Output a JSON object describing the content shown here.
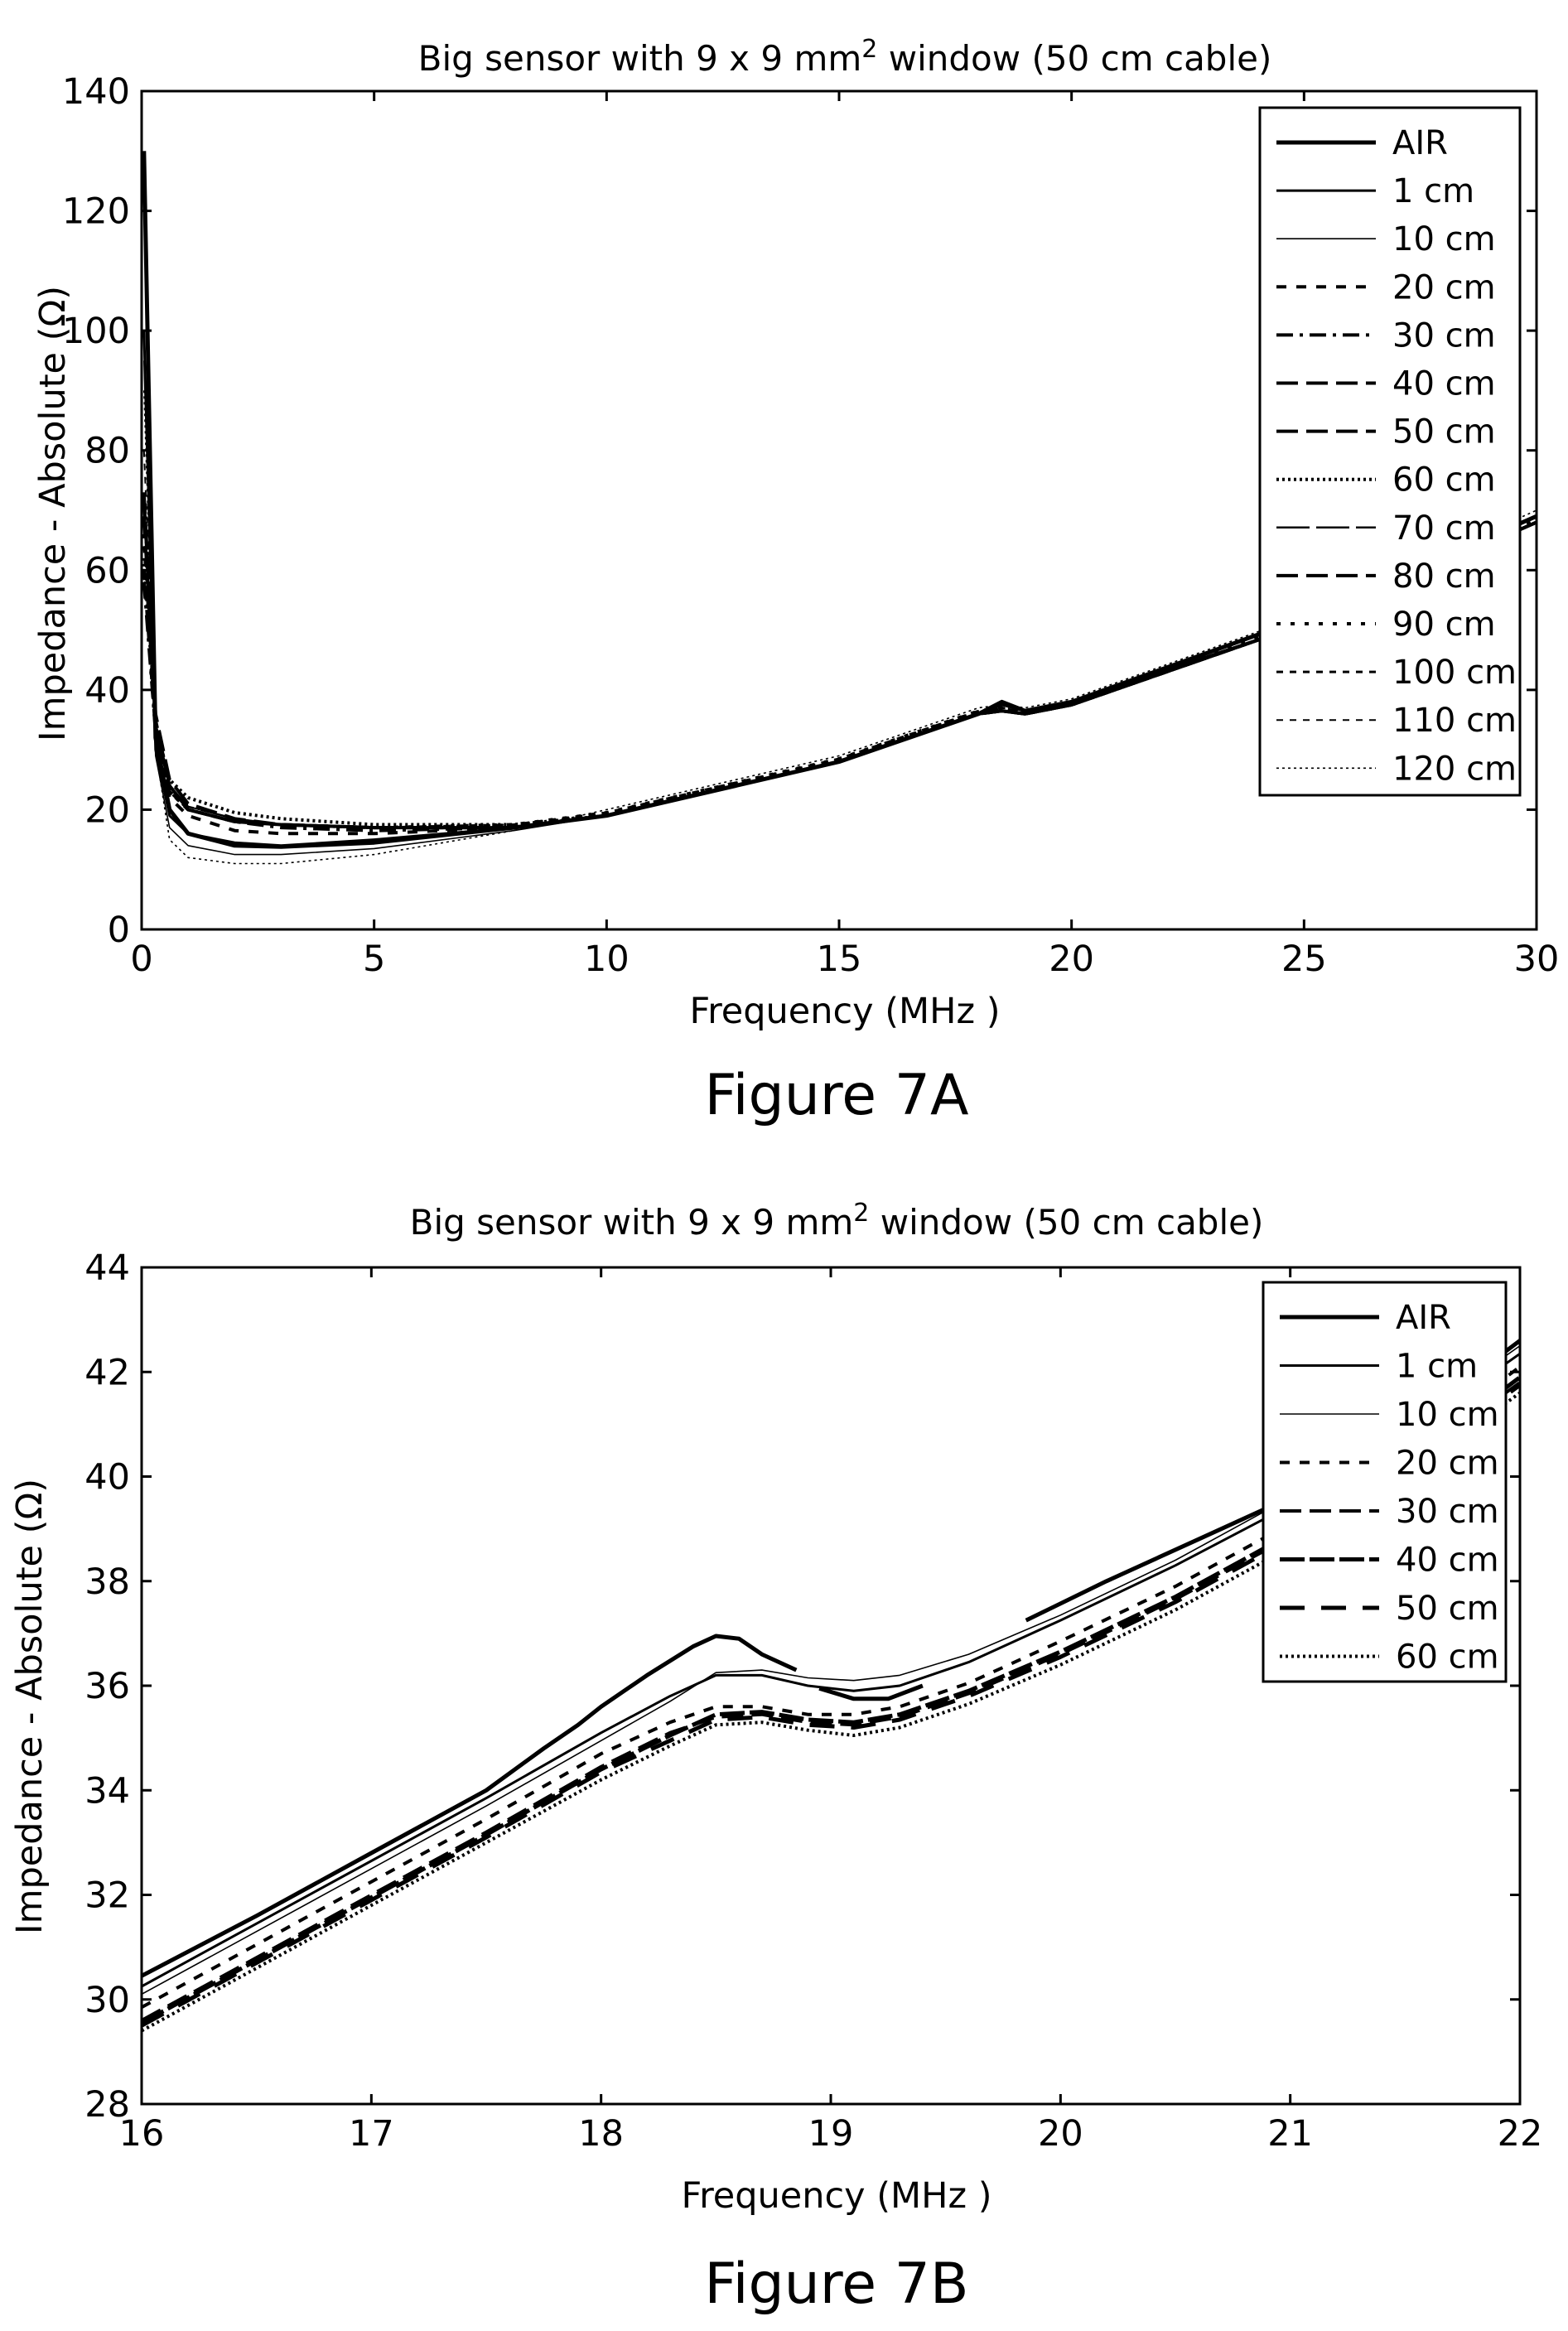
{
  "chart_data": [
    {
      "type": "line",
      "caption": "Figure 7A",
      "title": "Big sensor with 9 x 9 mm",
      "title_superscript": "2",
      "title_suffix": " window (50 cm cable)",
      "xlabel": "Frequency (MHz )",
      "ylabel": "Impedance - Absolute (Ω)",
      "xlim": [
        0,
        30
      ],
      "ylim": [
        0,
        140
      ],
      "x_ticks": [
        "0",
        "5",
        "10",
        "15",
        "20",
        "25",
        "30"
      ],
      "y_ticks": [
        "0",
        "20",
        "40",
        "60",
        "80",
        "100",
        "120",
        "140"
      ],
      "grid": false,
      "legend_position": "top-right",
      "series": [
        {
          "name": "AIR",
          "style": "thick-solid",
          "x": [
            0.05,
            0.3,
            0.6,
            1,
            2,
            3,
            5,
            8,
            10,
            15,
            18,
            18.5,
            19,
            20,
            25,
            30
          ],
          "y": [
            130,
            32,
            20,
            16,
            14,
            13.8,
            14.5,
            17,
            19,
            28,
            36,
            38,
            36.5,
            38,
            52,
            69
          ]
        },
        {
          "name": "1 cm",
          "style": "solid",
          "x": [
            0.05,
            0.3,
            0.6,
            1,
            2,
            3,
            5,
            8,
            10,
            15,
            18,
            18.5,
            19,
            20,
            25,
            30
          ],
          "y": [
            100,
            30,
            19,
            16,
            14.5,
            14,
            15,
            17,
            19,
            28,
            36,
            37.5,
            36.5,
            38,
            51,
            68
          ]
        },
        {
          "name": "10 cm",
          "style": "thin-solid",
          "x": [
            0.05,
            0.3,
            0.6,
            1,
            2,
            3,
            5,
            8,
            10,
            15,
            18,
            18.5,
            19,
            20,
            25,
            30
          ],
          "y": [
            95,
            29,
            17,
            14,
            12.5,
            12.5,
            13.5,
            16.5,
            19,
            28,
            36,
            37.5,
            36.5,
            38,
            51,
            68
          ]
        },
        {
          "name": "20 cm",
          "style": "dashed",
          "x": [
            0.05,
            0.3,
            0.6,
            1,
            2,
            3,
            5,
            8,
            10,
            15,
            18,
            18.5,
            19,
            20,
            25,
            30
          ],
          "y": [
            60,
            33,
            22,
            19,
            16.5,
            16,
            16,
            17,
            19,
            28,
            36,
            37,
            36,
            37.5,
            51,
            68
          ]
        },
        {
          "name": "30 cm",
          "style": "dash-dot",
          "x": [
            0.05,
            0.3,
            0.6,
            1,
            2,
            3,
            5,
            8,
            10,
            15,
            18,
            18.5,
            19,
            20,
            25,
            30
          ],
          "y": [
            58,
            33,
            23,
            20,
            18,
            17,
            16.5,
            17,
            19,
            28,
            36,
            36.5,
            36,
            37.5,
            51,
            68
          ]
        },
        {
          "name": "40 cm",
          "style": "long-dash",
          "x": [
            0.05,
            0.3,
            0.6,
            1,
            2,
            3,
            5,
            8,
            10,
            15,
            18,
            18.5,
            19,
            20,
            25,
            30
          ],
          "y": [
            73,
            36,
            25,
            21,
            18.5,
            17.5,
            17,
            17,
            19,
            28,
            36,
            36.5,
            36,
            37.5,
            51,
            68
          ]
        },
        {
          "name": "50 cm",
          "style": "long-dash",
          "x": [
            0.05,
            0.3,
            0.6,
            1,
            2,
            3,
            5,
            8,
            10,
            15,
            18,
            18.5,
            19,
            20,
            25,
            30
          ],
          "y": [
            72,
            35,
            24,
            20,
            18,
            17.5,
            17,
            17,
            19,
            28,
            36,
            36.5,
            36,
            37.5,
            51,
            68
          ]
        },
        {
          "name": "60 cm",
          "style": "dotted",
          "x": [
            0.05,
            0.3,
            0.6,
            1,
            2,
            3,
            5,
            8,
            10,
            15,
            18,
            18.5,
            19,
            20,
            25,
            30
          ],
          "y": [
            62,
            34,
            25,
            22,
            19.5,
            18.5,
            17.5,
            17.5,
            19,
            28,
            36,
            36.5,
            36,
            37.5,
            51,
            68
          ]
        },
        {
          "name": "70 cm",
          "style": "long-dash-thin",
          "x": [
            0.05,
            0.3,
            0.6,
            1,
            2,
            3,
            5,
            8,
            10,
            15,
            18,
            18.5,
            19,
            20,
            25,
            30
          ],
          "y": [
            70,
            34,
            24,
            20.5,
            18.5,
            17.5,
            17,
            17,
            19,
            28,
            36,
            36.5,
            36,
            37.5,
            51,
            68
          ]
        },
        {
          "name": "80 cm",
          "style": "long-dash",
          "x": [
            0.05,
            0.3,
            0.6,
            1,
            2,
            3,
            5,
            8,
            10,
            15,
            18,
            18.5,
            19,
            20,
            25,
            30
          ],
          "y": [
            69,
            34,
            24,
            20,
            18,
            17.5,
            17,
            17,
            19,
            28,
            36,
            36.5,
            36,
            37.5,
            51,
            68
          ]
        },
        {
          "name": "90 cm",
          "style": "dotted-coarse",
          "x": [
            0.05,
            0.3,
            0.6,
            1,
            2,
            3,
            5,
            8,
            10,
            15,
            18,
            18.5,
            19,
            20,
            25,
            30
          ],
          "y": [
            66,
            33,
            23,
            20,
            18,
            17.5,
            17,
            17.5,
            19.5,
            28.5,
            36.5,
            37,
            36.5,
            38,
            51.5,
            68.5
          ]
        },
        {
          "name": "100 cm",
          "style": "short-dash",
          "x": [
            0.05,
            0.3,
            0.6,
            1,
            2,
            3,
            5,
            8,
            10,
            15,
            18,
            18.5,
            19,
            20,
            25,
            30
          ],
          "y": [
            64,
            33,
            23,
            20,
            18,
            17.5,
            17,
            17.5,
            19.5,
            28.5,
            36.5,
            37,
            36.5,
            38,
            52,
            69
          ]
        },
        {
          "name": "110 cm",
          "style": "short-dash-thin",
          "x": [
            0.05,
            0.3,
            0.6,
            1,
            2,
            3,
            5,
            8,
            10,
            15,
            18,
            18.5,
            19,
            20,
            25,
            30
          ],
          "y": [
            80,
            34,
            24,
            20.5,
            18.5,
            17.5,
            17,
            17.5,
            19.5,
            28.5,
            36.5,
            37,
            36.5,
            38,
            52,
            69
          ]
        },
        {
          "name": "120 cm",
          "style": "dotted-thin",
          "x": [
            0.05,
            0.3,
            0.6,
            1,
            2,
            3,
            5,
            8,
            10,
            15,
            18,
            18.5,
            19,
            20,
            25,
            30
          ],
          "y": [
            90,
            30,
            15,
            12,
            11,
            11,
            12.5,
            16.5,
            20,
            29,
            37,
            37.5,
            37,
            38.5,
            52.5,
            70
          ]
        }
      ]
    },
    {
      "type": "line",
      "caption": "Figure 7B",
      "title": "Big sensor with 9 x 9 mm",
      "title_superscript": "2",
      "title_suffix": " window (50 cm cable)",
      "xlabel": "Frequency (MHz )",
      "ylabel": "Impedance - Absolute (Ω)",
      "xlim": [
        16,
        22
      ],
      "ylim": [
        28,
        44
      ],
      "x_ticks": [
        "16",
        "17",
        "18",
        "19",
        "20",
        "21",
        "22"
      ],
      "y_ticks": [
        "28",
        "30",
        "32",
        "34",
        "36",
        "38",
        "40",
        "42",
        "44"
      ],
      "grid": false,
      "legend_position": "top-right",
      "series": [
        {
          "name": "AIR",
          "style": "thick-solid",
          "segments": [
            {
              "x": [
                16,
                16.5,
                17,
                17.5,
                17.75,
                17.9,
                18.0,
                18.2,
                18.4,
                18.5,
                18.6,
                18.7,
                18.85
              ],
              "y": [
                30.45,
                31.6,
                32.8,
                34.0,
                34.8,
                35.25,
                35.6,
                36.2,
                36.75,
                36.95,
                36.9,
                36.6,
                36.3
              ]
            },
            {
              "x": [
                18.95,
                19.1,
                19.25,
                19.4
              ],
              "y": [
                35.95,
                35.75,
                35.75,
                36.0
              ]
            },
            {
              "x": [
                19.85,
                20.2,
                20.6,
                21.0,
                21.5,
                22.0
              ],
              "y": [
                37.25,
                38.0,
                38.8,
                39.6,
                40.95,
                42.6
              ]
            }
          ]
        },
        {
          "name": "1 cm",
          "style": "solid",
          "x": [
            16,
            16.5,
            17,
            17.5,
            18.0,
            18.3,
            18.5,
            18.7,
            18.9,
            19.1,
            19.3,
            19.6,
            20.0,
            20.5,
            21.0,
            21.5,
            22.0
          ],
          "y": [
            30.25,
            31.45,
            32.65,
            33.85,
            35.1,
            35.8,
            36.2,
            36.2,
            36.0,
            35.9,
            36.0,
            36.45,
            37.25,
            38.3,
            39.45,
            40.8,
            42.35
          ]
        },
        {
          "name": "10 cm",
          "style": "thin-solid",
          "x": [
            16,
            16.5,
            17,
            17.5,
            18.0,
            18.3,
            18.5,
            18.7,
            18.9,
            19.1,
            19.3,
            19.6,
            20.0,
            20.5,
            21.0,
            21.5,
            22.0
          ],
          "y": [
            30.1,
            31.3,
            32.5,
            33.7,
            34.95,
            35.7,
            36.25,
            36.3,
            36.15,
            36.1,
            36.2,
            36.6,
            37.35,
            38.4,
            39.6,
            40.95,
            42.5
          ]
        },
        {
          "name": "20 cm",
          "style": "dashed",
          "x": [
            16,
            16.5,
            17,
            17.5,
            18.0,
            18.3,
            18.5,
            18.7,
            18.9,
            19.1,
            19.3,
            19.6,
            20.0,
            20.5,
            21.0,
            21.5,
            22.0
          ],
          "y": [
            29.85,
            31.05,
            32.25,
            33.45,
            34.7,
            35.3,
            35.6,
            35.6,
            35.45,
            35.45,
            35.6,
            36.05,
            36.85,
            37.9,
            39.1,
            40.45,
            42.1
          ]
        },
        {
          "name": "30 cm",
          "style": "long-dash",
          "x": [
            16,
            16.5,
            17,
            17.5,
            18.0,
            18.3,
            18.5,
            18.7,
            18.9,
            19.1,
            19.3,
            19.6,
            20.0,
            20.5,
            21.0,
            21.5,
            22.0
          ],
          "y": [
            29.6,
            30.8,
            32.0,
            33.2,
            34.45,
            35.1,
            35.4,
            35.45,
            35.3,
            35.25,
            35.4,
            35.85,
            36.6,
            37.65,
            38.85,
            40.2,
            41.8
          ]
        },
        {
          "name": "40 cm",
          "style": "thick-long-dash",
          "x": [
            16,
            16.5,
            17,
            17.5,
            18.0,
            18.3,
            18.5,
            18.7,
            18.9,
            19.1,
            19.3,
            19.6,
            20.0,
            20.5,
            21.0,
            21.5,
            22.0
          ],
          "y": [
            29.55,
            30.75,
            31.95,
            33.15,
            34.4,
            35.05,
            35.45,
            35.5,
            35.35,
            35.3,
            35.45,
            35.9,
            36.65,
            37.7,
            38.9,
            40.25,
            41.9
          ]
        },
        {
          "name": "50 cm",
          "style": "long-dash-gap",
          "x": [
            16,
            16.5,
            17,
            17.5,
            18.0,
            18.3,
            18.5,
            18.7,
            18.9,
            19.1,
            19.3,
            19.6,
            20.0,
            20.5,
            21.0,
            21.5,
            22.0
          ],
          "y": [
            29.5,
            30.7,
            31.9,
            33.1,
            34.35,
            34.95,
            35.35,
            35.4,
            35.25,
            35.2,
            35.35,
            35.8,
            36.55,
            37.6,
            38.8,
            40.15,
            41.75
          ]
        },
        {
          "name": "60 cm",
          "style": "dotted",
          "x": [
            16,
            16.5,
            17,
            17.5,
            18.0,
            18.3,
            18.5,
            18.7,
            18.9,
            19.1,
            19.3,
            19.6,
            20.0,
            20.5,
            21.0,
            21.5,
            22.0
          ],
          "y": [
            29.4,
            30.6,
            31.8,
            33.0,
            34.2,
            34.85,
            35.25,
            35.3,
            35.15,
            35.05,
            35.2,
            35.65,
            36.4,
            37.45,
            38.65,
            40.0,
            41.6
          ]
        }
      ]
    }
  ]
}
